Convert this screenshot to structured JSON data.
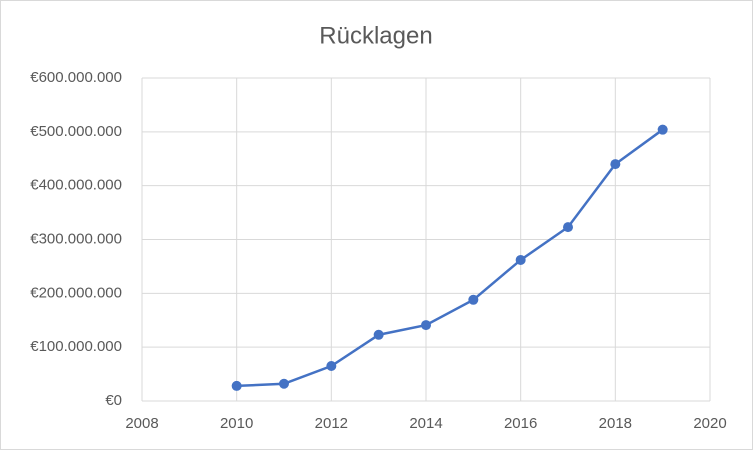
{
  "chart_data": {
    "type": "line",
    "title": "Rücklagen",
    "x": [
      2010,
      2011,
      2012,
      2013,
      2014,
      2015,
      2016,
      2017,
      2018,
      2019
    ],
    "series": [
      {
        "name": "Rücklagen",
        "color": "#4472c4",
        "values": [
          28000000,
          32000000,
          65000000,
          123000000,
          141000000,
          188000000,
          262000000,
          323000000,
          440000000,
          504000000
        ]
      }
    ],
    "xlim": [
      2008,
      2020
    ],
    "xticks": [
      2008,
      2010,
      2012,
      2014,
      2016,
      2018,
      2020
    ],
    "ylim": [
      0,
      600000000
    ],
    "yticks": [
      {
        "value": 0,
        "label": "€0"
      },
      {
        "value": 100000000,
        "label": "€100.000.000"
      },
      {
        "value": 200000000,
        "label": "€200.000.000"
      },
      {
        "value": 300000000,
        "label": "€300.000.000"
      },
      {
        "value": 400000000,
        "label": "€400.000.000"
      },
      {
        "value": 500000000,
        "label": "€500.000.000"
      },
      {
        "value": 600000000,
        "label": "€600.000.000"
      }
    ],
    "grid": true
  }
}
